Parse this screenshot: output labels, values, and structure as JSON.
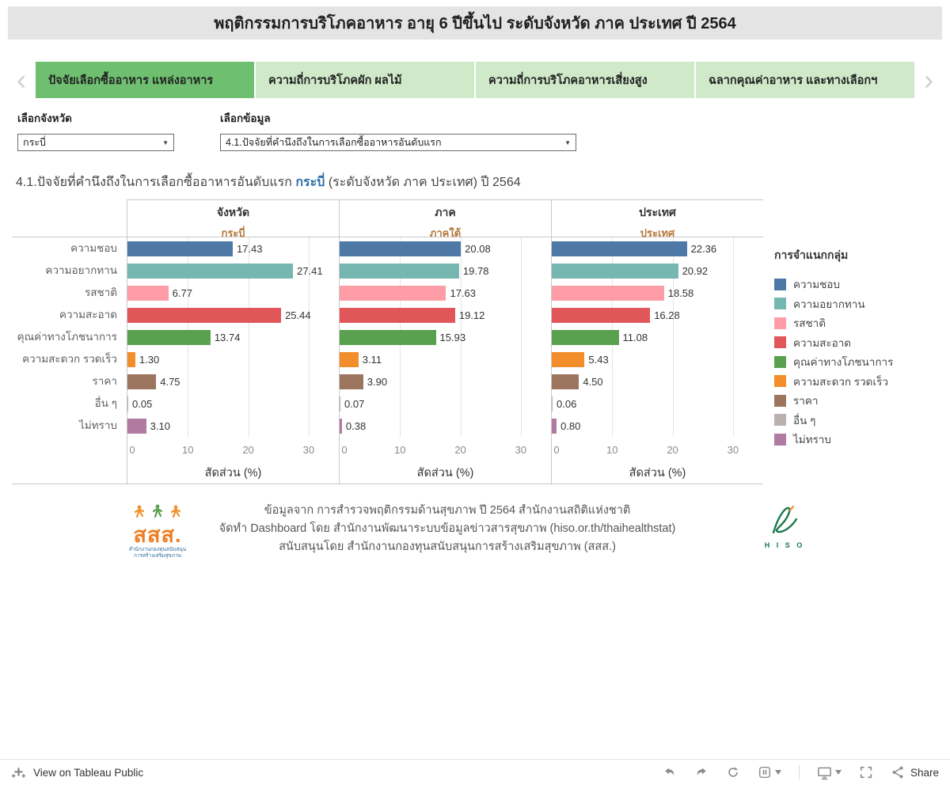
{
  "title": "พฤติกรรมการบริโภคอาหาร อายุ 6 ปีขึ้นไป ระดับจังหวัด ภาค ประเทศ ปี 2564",
  "tabs": [
    {
      "label": "ปัจจัยเลือกซื้ออาหาร แหล่งอาหาร",
      "active": true
    },
    {
      "label": "ความถี่การบริโภคผัก ผลไม้",
      "active": false
    },
    {
      "label": "ความถี่การบริโภคอาหารเสี่ยงสูง",
      "active": false
    },
    {
      "label": "ฉลากคุณค่าอาหาร และทางเลือกฯ",
      "active": false
    }
  ],
  "filters": {
    "province_label": "เลือกจังหวัด",
    "province_value": "กระบี่",
    "data_label": "เลือกข้อมูล",
    "data_value": "4.1.ปัจจัยที่คำนึงถึงในการเลือกซื้ออาหารอันดับแรก"
  },
  "chart_title": {
    "prefix": "4.1.ปัจจัยที่คำนึงถึงในการเลือกซื้ออาหารอันดับแรก ",
    "highlight": "กระบี่",
    "suffix": " (ระดับจังหวัด ภาค ประเทศ) ปี 2564"
  },
  "chart_data": {
    "type": "bar",
    "orientation": "horizontal",
    "categories": [
      "ความชอบ",
      "ความอยากทาน",
      "รสชาติ",
      "ความสะอาด",
      "คุณค่าทางโภชนาการ",
      "ความสะดวก รวดเร็ว",
      "ราคา",
      "อื่น ๆ",
      "ไม่ทราบ"
    ],
    "colors": [
      "#4e79a7",
      "#76b7b2",
      "#ff9da7",
      "#e15759",
      "#59a14f",
      "#f28e2b",
      "#9c755f",
      "#bab0ac",
      "#b07aa1"
    ],
    "panels": [
      {
        "header": "จังหวัด",
        "subheader": "กระบี่",
        "values": [
          17.43,
          27.41,
          6.77,
          25.44,
          13.74,
          1.3,
          4.75,
          0.05,
          3.1
        ]
      },
      {
        "header": "ภาค",
        "subheader": "ภาคใต้",
        "values": [
          20.08,
          19.78,
          17.63,
          19.12,
          15.93,
          3.11,
          3.9,
          0.07,
          0.38
        ]
      },
      {
        "header": "ประเทศ",
        "subheader": "ประเทศ",
        "values": [
          22.36,
          20.92,
          18.58,
          16.28,
          11.08,
          5.43,
          4.5,
          0.06,
          0.8
        ]
      }
    ],
    "xlabel": "สัดส่วน (%)",
    "ticks": [
      0,
      10,
      20,
      30
    ],
    "xmax": 35,
    "legend_title": "การจำแนกกลุ่ม",
    "grid": true,
    "legend_position": "right"
  },
  "footer": {
    "lines": [
      "ข้อมูลจาก การสำรวจพฤติกรรมด้านสุขภาพ ปี 2564 สำนักงานสถิติแห่งชาติ",
      "จัดทำ Dashboard โดย สำนักงานพัฒนาระบบข้อมูลข่าวสารสุขภาพ (hiso.or.th/thaihealthstat)",
      "สนับสนุนโดย สำนักงานกองทุนสนับสนุนการสร้างเสริมสุขภาพ (สสส.)"
    ],
    "logo_left": "สสส.",
    "logo_left_sub1": "สำนักงานกองทุนสนับสนุน",
    "logo_left_sub2": "การสร้างเสริมสุขภาพ",
    "logo_right": "H I S O"
  },
  "toolbar": {
    "view_label": "View on Tableau Public",
    "share_label": "Share"
  },
  "ui_colors": {
    "title_bar_bg": "#e4e4e4",
    "tab_active_bg": "#6fbf70",
    "tab_inactive_bg": "#cfe9c9",
    "panel_subheader": "#b5773d",
    "title_highlight": "#2e6da8"
  }
}
